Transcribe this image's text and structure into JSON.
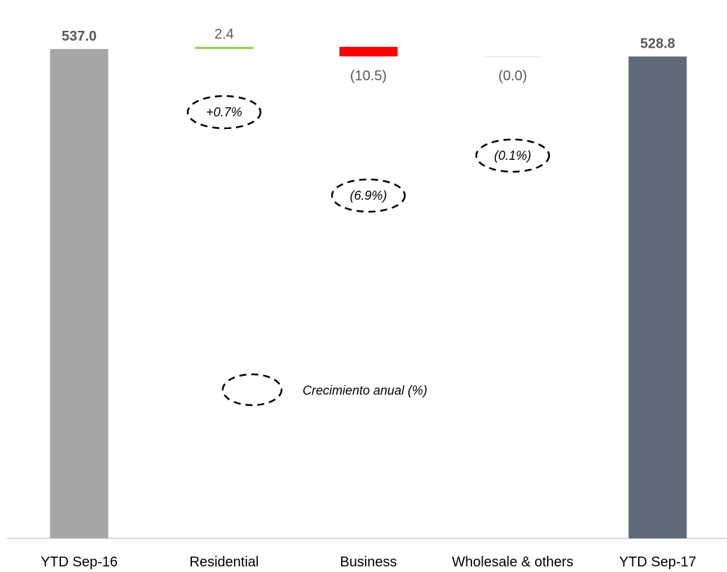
{
  "chart_data": {
    "type": "bar",
    "subtype": "waterfall",
    "categories": [
      "YTD Sep-16",
      "Residential",
      "Business",
      "Wholesale & others",
      "YTD Sep-17"
    ],
    "values": [
      537.0,
      2.4,
      -10.5,
      0.0,
      528.8
    ],
    "kinds": [
      "total",
      "delta",
      "delta",
      "delta",
      "total"
    ],
    "value_labels": [
      "537.0",
      "2.4",
      "(10.5)",
      "(0.0)",
      "528.8"
    ],
    "growth_labels": [
      "",
      "+0.7%",
      "(6.9%)",
      "(0.1%)",
      ""
    ],
    "legend": {
      "label": "Crecimiento anual (%)"
    },
    "colors": {
      "start_total": "#a6a6a6",
      "end_total": "#5f6b7a",
      "increase": "#92d050",
      "decrease": "#ff0000",
      "zero_delta": "#e6d9f0",
      "axis": "#d9d9d9"
    },
    "title": "",
    "xlabel": "",
    "ylabel": "",
    "grid": false
  }
}
